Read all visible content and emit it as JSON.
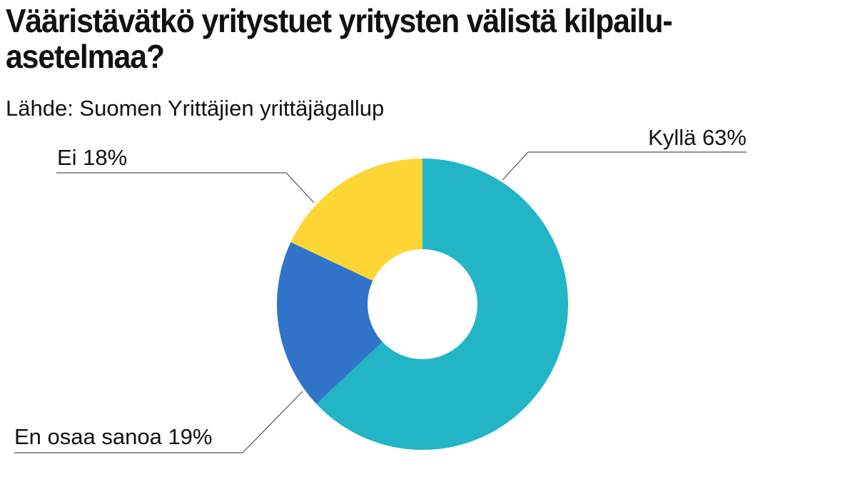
{
  "title": "Vääristävätkö yritystuet yritysten välistä kilpailu-asetelmaa?",
  "subtitle": "Lähde: Suomen Yrittäjien yrittäjägallup",
  "chart_data": {
    "type": "pie",
    "variant": "donut",
    "title": "Vääristävätkö yritystuet yritysten välistä kilpailu-asetelmaa?",
    "subtitle": "Lähde: Suomen Yrittäjien yrittäjägallup",
    "start": "top",
    "direction": "clockwise",
    "slices": [
      {
        "label": "Kyllä",
        "value": 63,
        "display": "Kyllä 63%",
        "color": "#22B5C6"
      },
      {
        "label": "En osaa sanoa",
        "value": 19,
        "display": "En osaa sanoa 19%",
        "color": "#3074CA"
      },
      {
        "label": "Ei",
        "value": 18,
        "display": "Ei 18%",
        "color": "#FDD535"
      }
    ]
  }
}
